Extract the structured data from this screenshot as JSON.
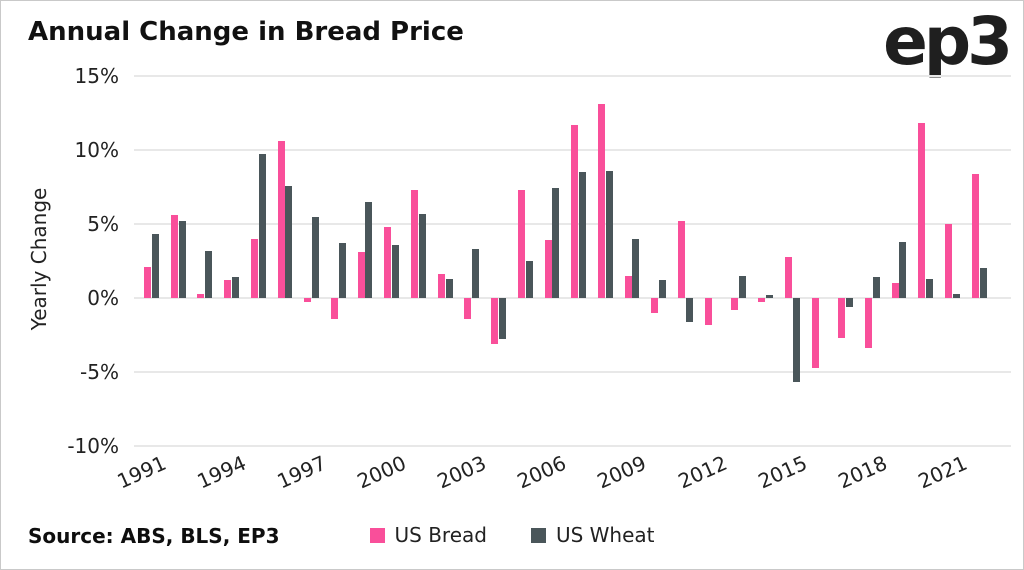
{
  "header": {
    "title": "Annual Change in Bread Price",
    "logo": "ep3"
  },
  "footer": {
    "source": "Source: ABS, BLS, EP3"
  },
  "colors": {
    "bread": "#f94f9a",
    "wheat": "#4a565a",
    "grid": "#e8e8e8",
    "text": "#222222"
  },
  "chart_data": {
    "type": "bar",
    "title": "Annual Change in Bread Price",
    "xlabel": "",
    "ylabel": "Yearly Change",
    "ylim": [
      -10,
      15
    ],
    "yticks": [
      15,
      10,
      5,
      0,
      -5,
      -10
    ],
    "ytick_suffix": "%",
    "grid": true,
    "legend_position": "bottom",
    "categories": [
      1991,
      1992,
      1993,
      1994,
      1995,
      1996,
      1997,
      1998,
      1999,
      2000,
      2001,
      2002,
      2003,
      2004,
      2005,
      2006,
      2007,
      2008,
      2009,
      2010,
      2011,
      2012,
      2013,
      2014,
      2015,
      2016,
      2017,
      2018,
      2019,
      2020,
      2021,
      2022
    ],
    "xtick_labels": [
      "1991",
      "1994",
      "1997",
      "2000",
      "2003",
      "2006",
      "2009",
      "2012",
      "2015",
      "2018",
      "2021"
    ],
    "series": [
      {
        "name": "US Bread",
        "color": "#f94f9a",
        "values": [
          2.1,
          5.6,
          0.3,
          1.2,
          4.0,
          10.6,
          -0.3,
          -1.4,
          3.1,
          4.8,
          7.3,
          1.6,
          -1.4,
          -3.1,
          7.3,
          3.9,
          11.7,
          13.1,
          1.5,
          -1.0,
          5.2,
          -1.8,
          -0.8,
          -0.3,
          2.8,
          -4.7,
          -2.7,
          -3.4,
          1.0,
          11.8,
          5.0,
          8.4
        ]
      },
      {
        "name": "US Wheat",
        "color": "#4a565a",
        "values": [
          4.3,
          5.2,
          3.2,
          1.4,
          9.7,
          7.6,
          5.5,
          3.7,
          6.5,
          3.6,
          5.7,
          1.3,
          3.3,
          -2.8,
          2.5,
          7.4,
          8.5,
          8.6,
          4.0,
          1.2,
          -1.6,
          0.0,
          1.5,
          0.2,
          -5.7,
          0.0,
          -0.6,
          1.4,
          3.8,
          1.3,
          0.3,
          2.0
        ]
      }
    ]
  }
}
